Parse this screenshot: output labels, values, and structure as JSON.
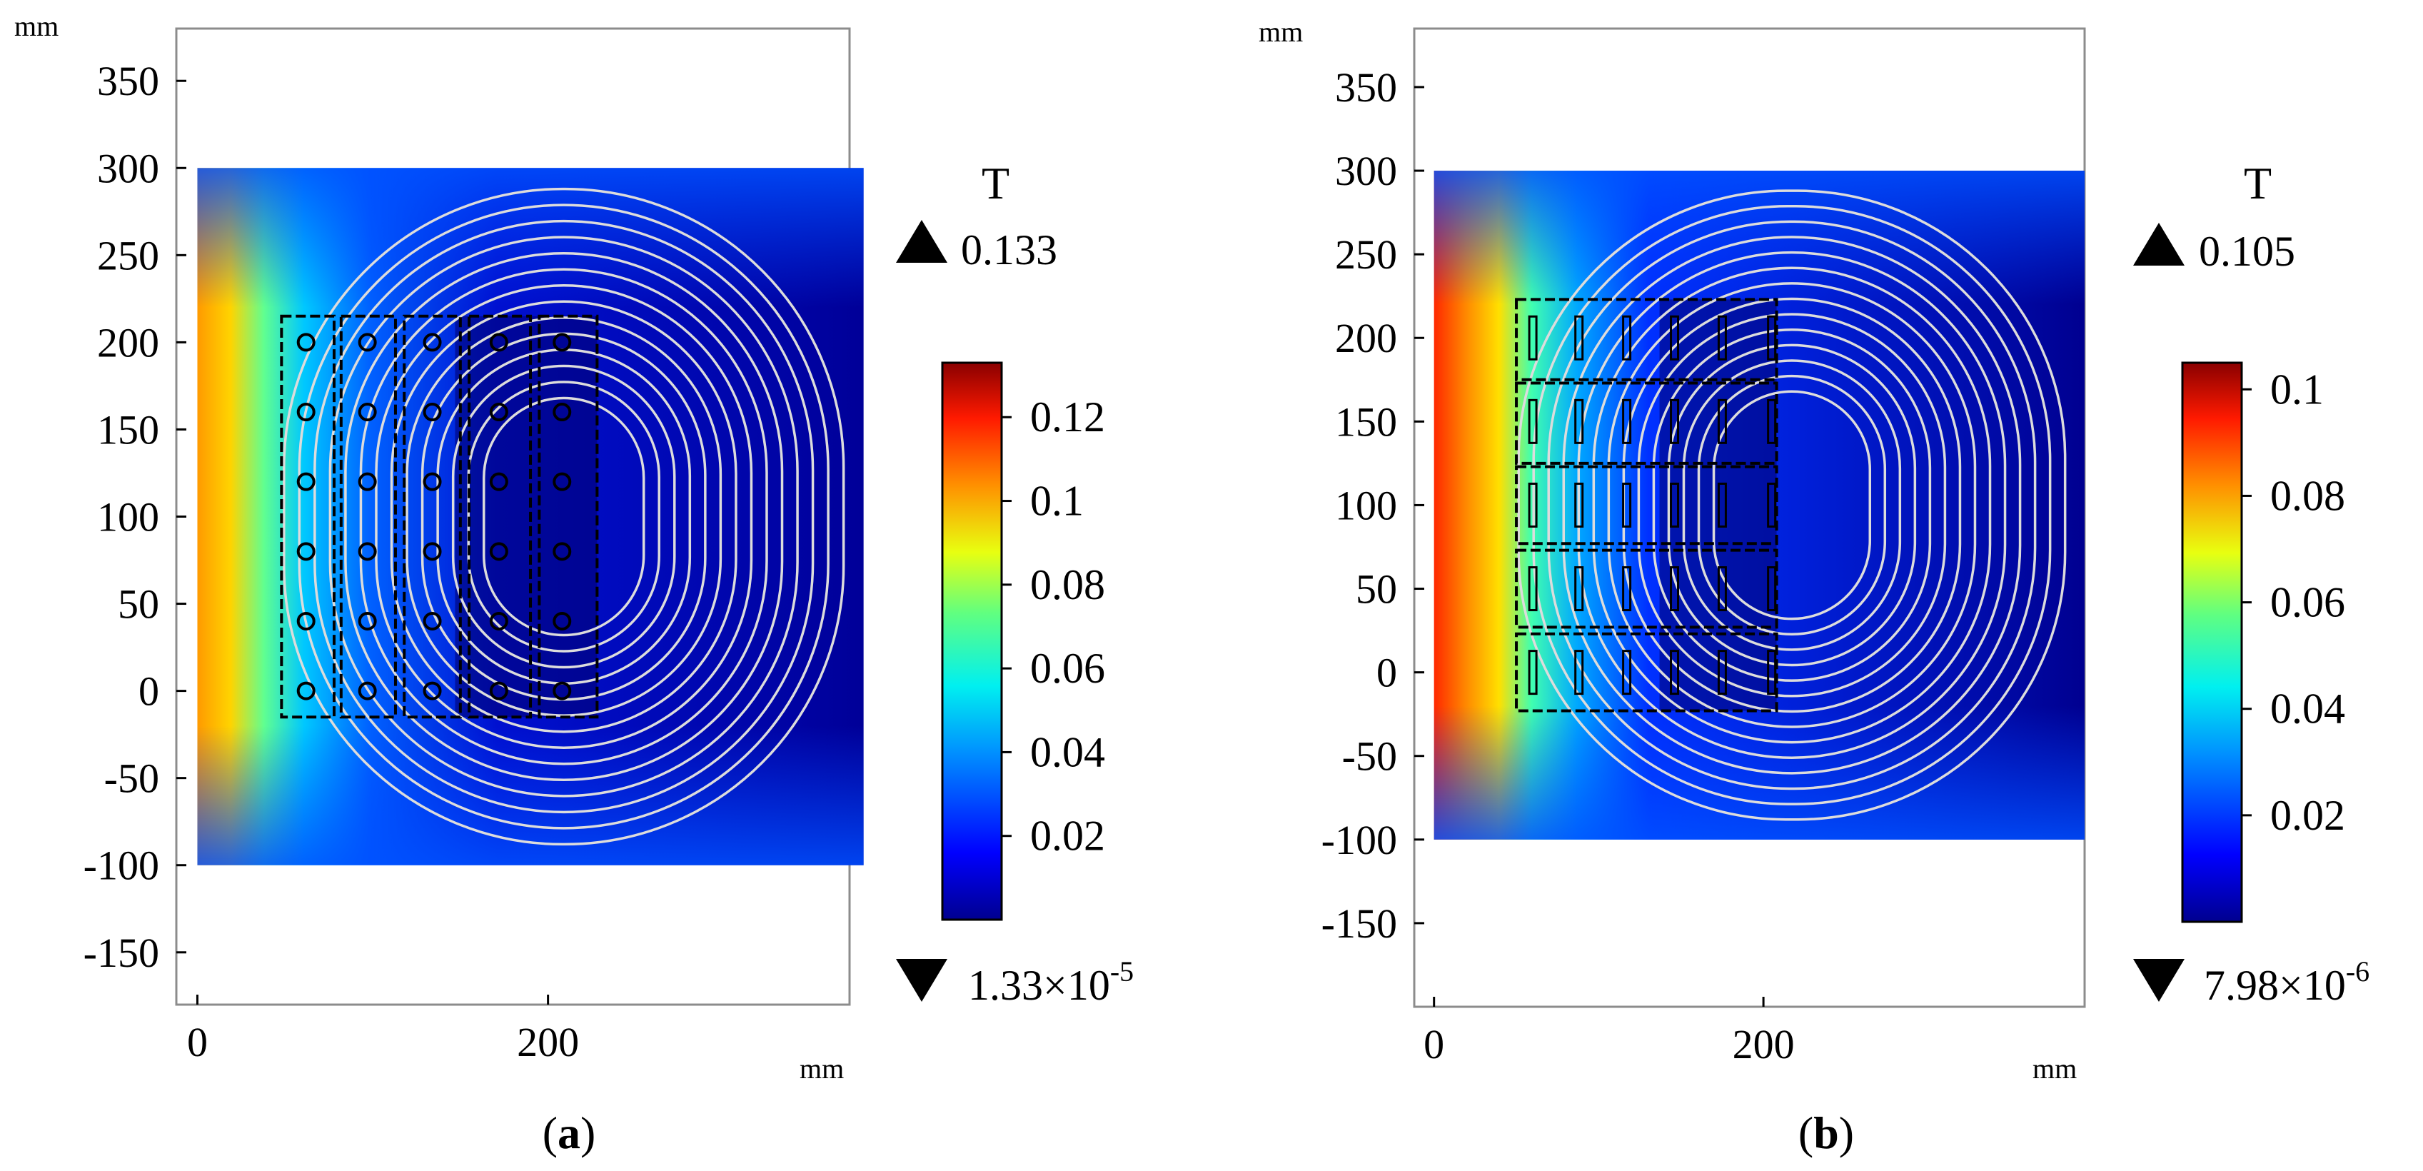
{
  "chart_data": [
    {
      "id": "a",
      "type": "heatmap",
      "caption_letter": "a",
      "units": "mm",
      "xlim": [
        -12,
        372
      ],
      "ylim": [
        -180,
        380
      ],
      "x_ticks": [
        0,
        200
      ],
      "x_tick_labels": [
        "0",
        "200"
      ],
      "y_ticks": [
        350,
        300,
        250,
        200,
        150,
        100,
        50,
        0,
        -50,
        -100,
        -150
      ],
      "y_tick_labels": [
        "350",
        "300",
        "250",
        "200",
        "150",
        "100",
        "50",
        "0",
        "-50",
        "-100",
        "-150"
      ],
      "field_extent": {
        "x": [
          0,
          380
        ],
        "y": [
          -100,
          300
        ]
      },
      "colorbar": {
        "title": "T",
        "max_label": "0.133",
        "min_mantissa": "1.33×10",
        "min_exponent": "-5",
        "range": [
          0,
          0.133
        ],
        "ticks": [
          0.12,
          0.1,
          0.08,
          0.06,
          0.04,
          0.02
        ],
        "tick_labels": [
          "0.12",
          "0.1",
          "0.08",
          "0.06",
          "0.04",
          "0.02"
        ]
      },
      "core_blocks": [
        {
          "x0": 48,
          "x1": 78,
          "y0": -15,
          "y1": 215
        },
        {
          "x0": 82,
          "x1": 113,
          "y0": -15,
          "y1": 215
        },
        {
          "x0": 118,
          "x1": 150,
          "y0": -15,
          "y1": 215
        },
        {
          "x0": 155,
          "x1": 190,
          "y0": -15,
          "y1": 215
        },
        {
          "x0": 195,
          "x1": 228,
          "y0": -15,
          "y1": 215
        }
      ],
      "hole_columns_x": [
        62,
        97,
        134,
        172,
        208
      ],
      "hole_rows_y": [
        0,
        40,
        80,
        120,
        160,
        200
      ]
    },
    {
      "id": "b",
      "type": "heatmap",
      "caption_letter": "b",
      "units": "mm",
      "xlim": [
        -12,
        395
      ],
      "ylim": [
        -200,
        385
      ],
      "x_ticks": [
        0,
        200
      ],
      "x_tick_labels": [
        "0",
        "200"
      ],
      "y_ticks": [
        350,
        300,
        250,
        200,
        150,
        100,
        50,
        0,
        -50,
        -100,
        -150
      ],
      "y_tick_labels": [
        "350",
        "300",
        "250",
        "200",
        "150",
        "100",
        "50",
        "0",
        "-50",
        "-100",
        "-150"
      ],
      "field_extent": {
        "x": [
          0,
          395
        ],
        "y": [
          -100,
          300
        ]
      },
      "colorbar": {
        "title": "T",
        "max_label": "0.105",
        "min_mantissa": "7.98×10",
        "min_exponent": "-6",
        "range": [
          0,
          0.105
        ],
        "ticks": [
          0.1,
          0.08,
          0.06,
          0.04,
          0.02
        ],
        "tick_labels": [
          "0.1",
          "0.08",
          "0.06",
          "0.04",
          "0.02"
        ]
      },
      "core_blocks": [
        {
          "x0": 50,
          "x1": 208,
          "y0": 175,
          "y1": 223
        },
        {
          "x0": 50,
          "x1": 208,
          "y0": 125,
          "y1": 173
        },
        {
          "x0": 50,
          "x1": 208,
          "y0": 77,
          "y1": 123
        },
        {
          "x0": 50,
          "x1": 208,
          "y0": 27,
          "y1": 73
        },
        {
          "x0": 50,
          "x1": 208,
          "y0": -23,
          "y1": 23
        }
      ],
      "slot_columns_x": [
        60,
        88,
        117,
        146,
        175,
        205
      ],
      "slot_rows_y": [
        200,
        150,
        100,
        50,
        0
      ]
    }
  ]
}
